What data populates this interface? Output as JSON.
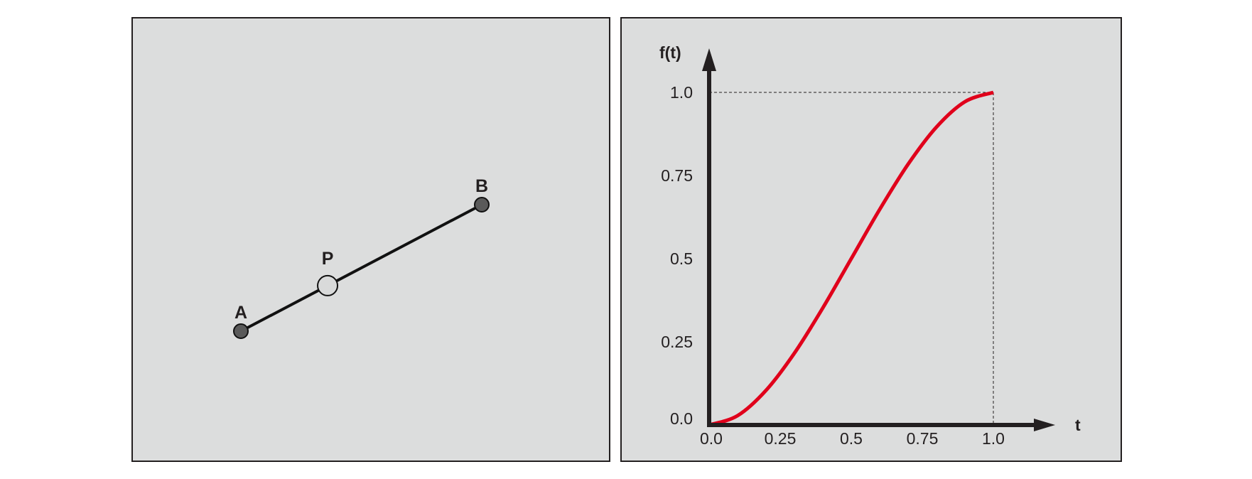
{
  "left_panel": {
    "points": [
      {
        "id": "A",
        "label": "A",
        "x": 0.0
      },
      {
        "id": "P",
        "label": "P",
        "x": 0.36
      },
      {
        "id": "B",
        "label": "B",
        "x": 1.0
      }
    ],
    "colors": {
      "endpoint": "#5a5a5a",
      "moving_point": "#d9dada",
      "segment": "#111111"
    }
  },
  "right_panel": {
    "x_axis_label": "t",
    "y_axis_label": "f(t)",
    "x_ticks": [
      "0.0",
      "0.25",
      "0.5",
      "0.75",
      "1.0"
    ],
    "y_ticks": [
      "0.0",
      "0.25",
      "0.5",
      "0.75",
      "1.0"
    ],
    "curve_color": "#e0001b",
    "axis_color": "#231f20"
  },
  "chart_data": {
    "type": "line",
    "series": [
      {
        "x": [
          0,
          0.1,
          0.2,
          0.3,
          0.4,
          0.5,
          0.6,
          0.7,
          0.8,
          0.9,
          1.0
        ],
        "y": [
          0,
          0.028,
          0.104,
          0.216,
          0.352,
          0.5,
          0.648,
          0.784,
          0.896,
          0.972,
          1.0
        ]
      }
    ],
    "xlim": [
      0,
      1
    ],
    "ylim": [
      0,
      1
    ],
    "xlabel": "t",
    "ylabel": "f(t)",
    "grid": false
  }
}
